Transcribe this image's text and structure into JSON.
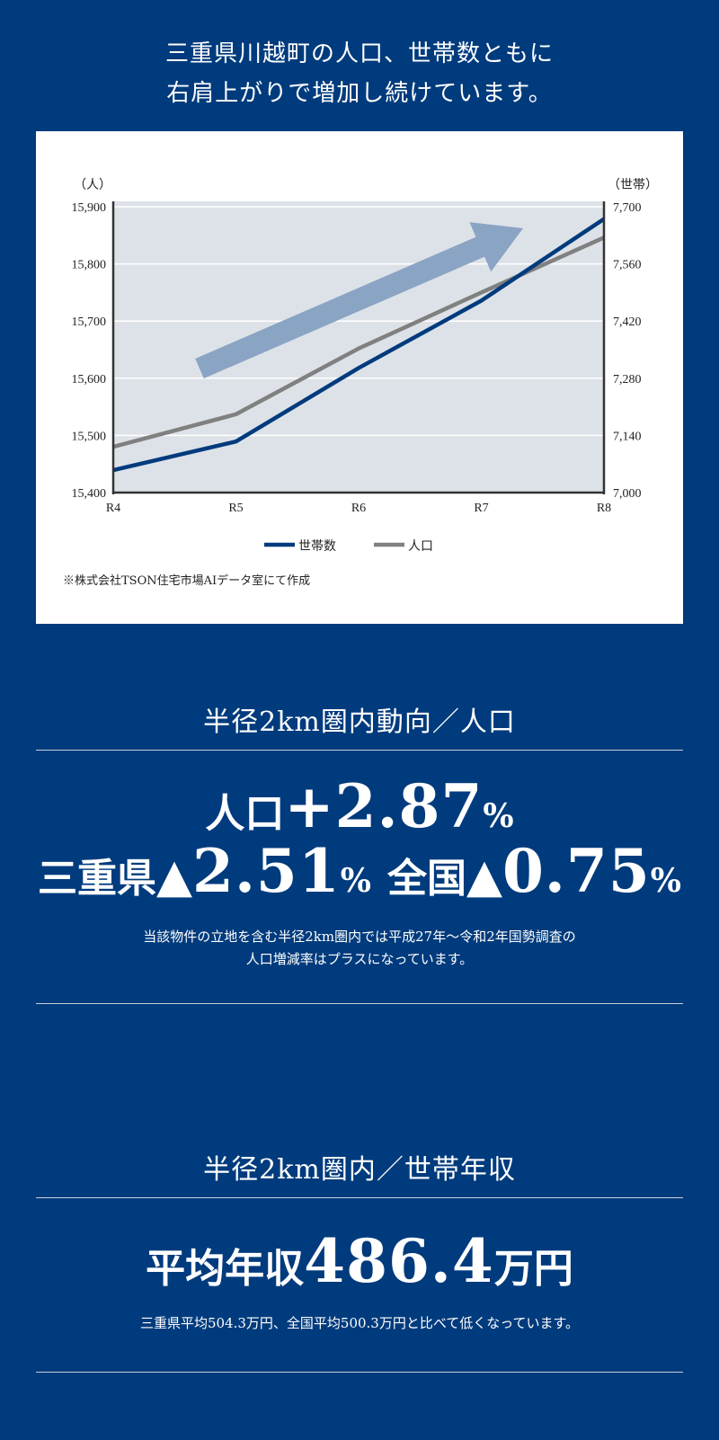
{
  "headline": {
    "line1": "三重県川越町の人口、世帯数ともに",
    "line2": "右肩上がりで増加し続けています。"
  },
  "chart_data": {
    "type": "line",
    "categories": [
      "R4",
      "R5",
      "R6",
      "R7",
      "R8"
    ],
    "left_axis": {
      "unit": "（人）",
      "min": 15400,
      "max": 15900,
      "ticks": [
        "15,400",
        "15,500",
        "15,600",
        "15,700",
        "15,800",
        "15,900"
      ]
    },
    "right_axis": {
      "unit": "（世帯）",
      "min": 7000,
      "max": 7700,
      "ticks": [
        "7,000",
        "7,140",
        "7,280",
        "7,420",
        "7,560",
        "7,700"
      ]
    },
    "series": [
      {
        "name": "世帯数",
        "axis": "right",
        "color": "#003b7d",
        "values": [
          7055,
          7125,
          7305,
          7470,
          7670
        ]
      },
      {
        "name": "人口",
        "axis": "left",
        "color": "#808080",
        "values": [
          15480,
          15537,
          15652,
          15750,
          15846
        ]
      }
    ],
    "arrow_color": "#8aa4c4",
    "plot_background": "#dde2e8",
    "legend_position": "bottom-center",
    "source": "※株式会社TSON住宅市場AIデータ室にて作成"
  },
  "population": {
    "title": "半径2km圏内動向／人口",
    "main_label": "人口",
    "main_value": "+2.87",
    "main_unit": "%",
    "pref_label": "三重県",
    "pref_triangle": "▲",
    "pref_value": "2.51",
    "pref_unit": "%",
    "nation_label": "全国",
    "nation_triangle": "▲",
    "nation_value": "0.75",
    "nation_unit": "%",
    "note1": "当該物件の立地を含む半径2km圏内では平成27年～令和2年国勢調査の",
    "note2": "人口増減率はプラスになっています。"
  },
  "income": {
    "title": "半径2km圏内／世帯年収",
    "label": "平均年収",
    "value": "486.4",
    "unit": "万円",
    "note": "三重県平均504.3万円、全国平均500.3万円と比べて低くなっています。"
  }
}
